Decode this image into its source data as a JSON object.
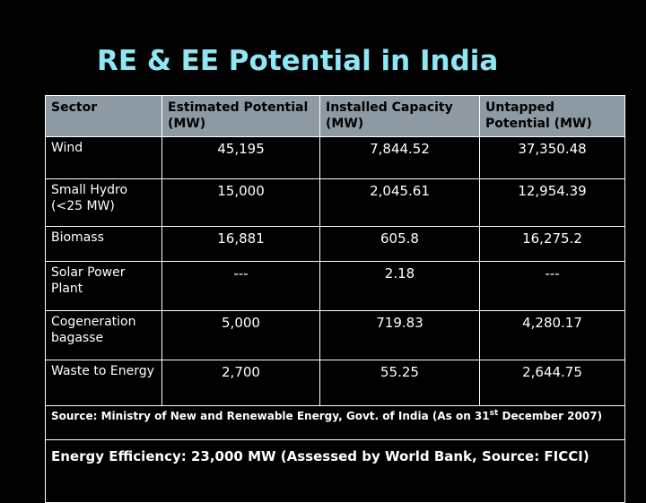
{
  "title": "RE & EE Potential in India",
  "table": {
    "headers": [
      "Sector",
      "Estimated Potential (MW)",
      "Installed Capacity (MW)",
      "Untapped Potential (MW)"
    ],
    "rows": [
      {
        "sector": "Wind",
        "estimated": "45,195",
        "installed": "7,844.52",
        "untapped": "37,350.48"
      },
      {
        "sector": "Small Hydro (<25 MW)",
        "estimated": "15,000",
        "installed": "2,045.61",
        "untapped": "12,954.39"
      },
      {
        "sector": "Biomass",
        "estimated": "16,881",
        "installed": "605.8",
        "untapped": "16,275.2"
      },
      {
        "sector": "Solar Power Plant",
        "estimated": "---",
        "installed": "2.18",
        "untapped": "---"
      },
      {
        "sector": "Cogeneration bagasse",
        "estimated": "5,000",
        "installed": "719.83",
        "untapped": "4,280.17"
      },
      {
        "sector": "Waste to Energy",
        "estimated": "2,700",
        "installed": "55.25",
        "untapped": "2,644.75"
      }
    ]
  },
  "source_note": {
    "prefix": "Source: Ministry of New and Renewable Energy, Govt. of India (As on 31",
    "superscript": "st",
    "suffix": " December 2007)"
  },
  "ee_note": "Energy Efficiency: 23,000 MW (Assessed by World Bank, Source: FICCI)"
}
